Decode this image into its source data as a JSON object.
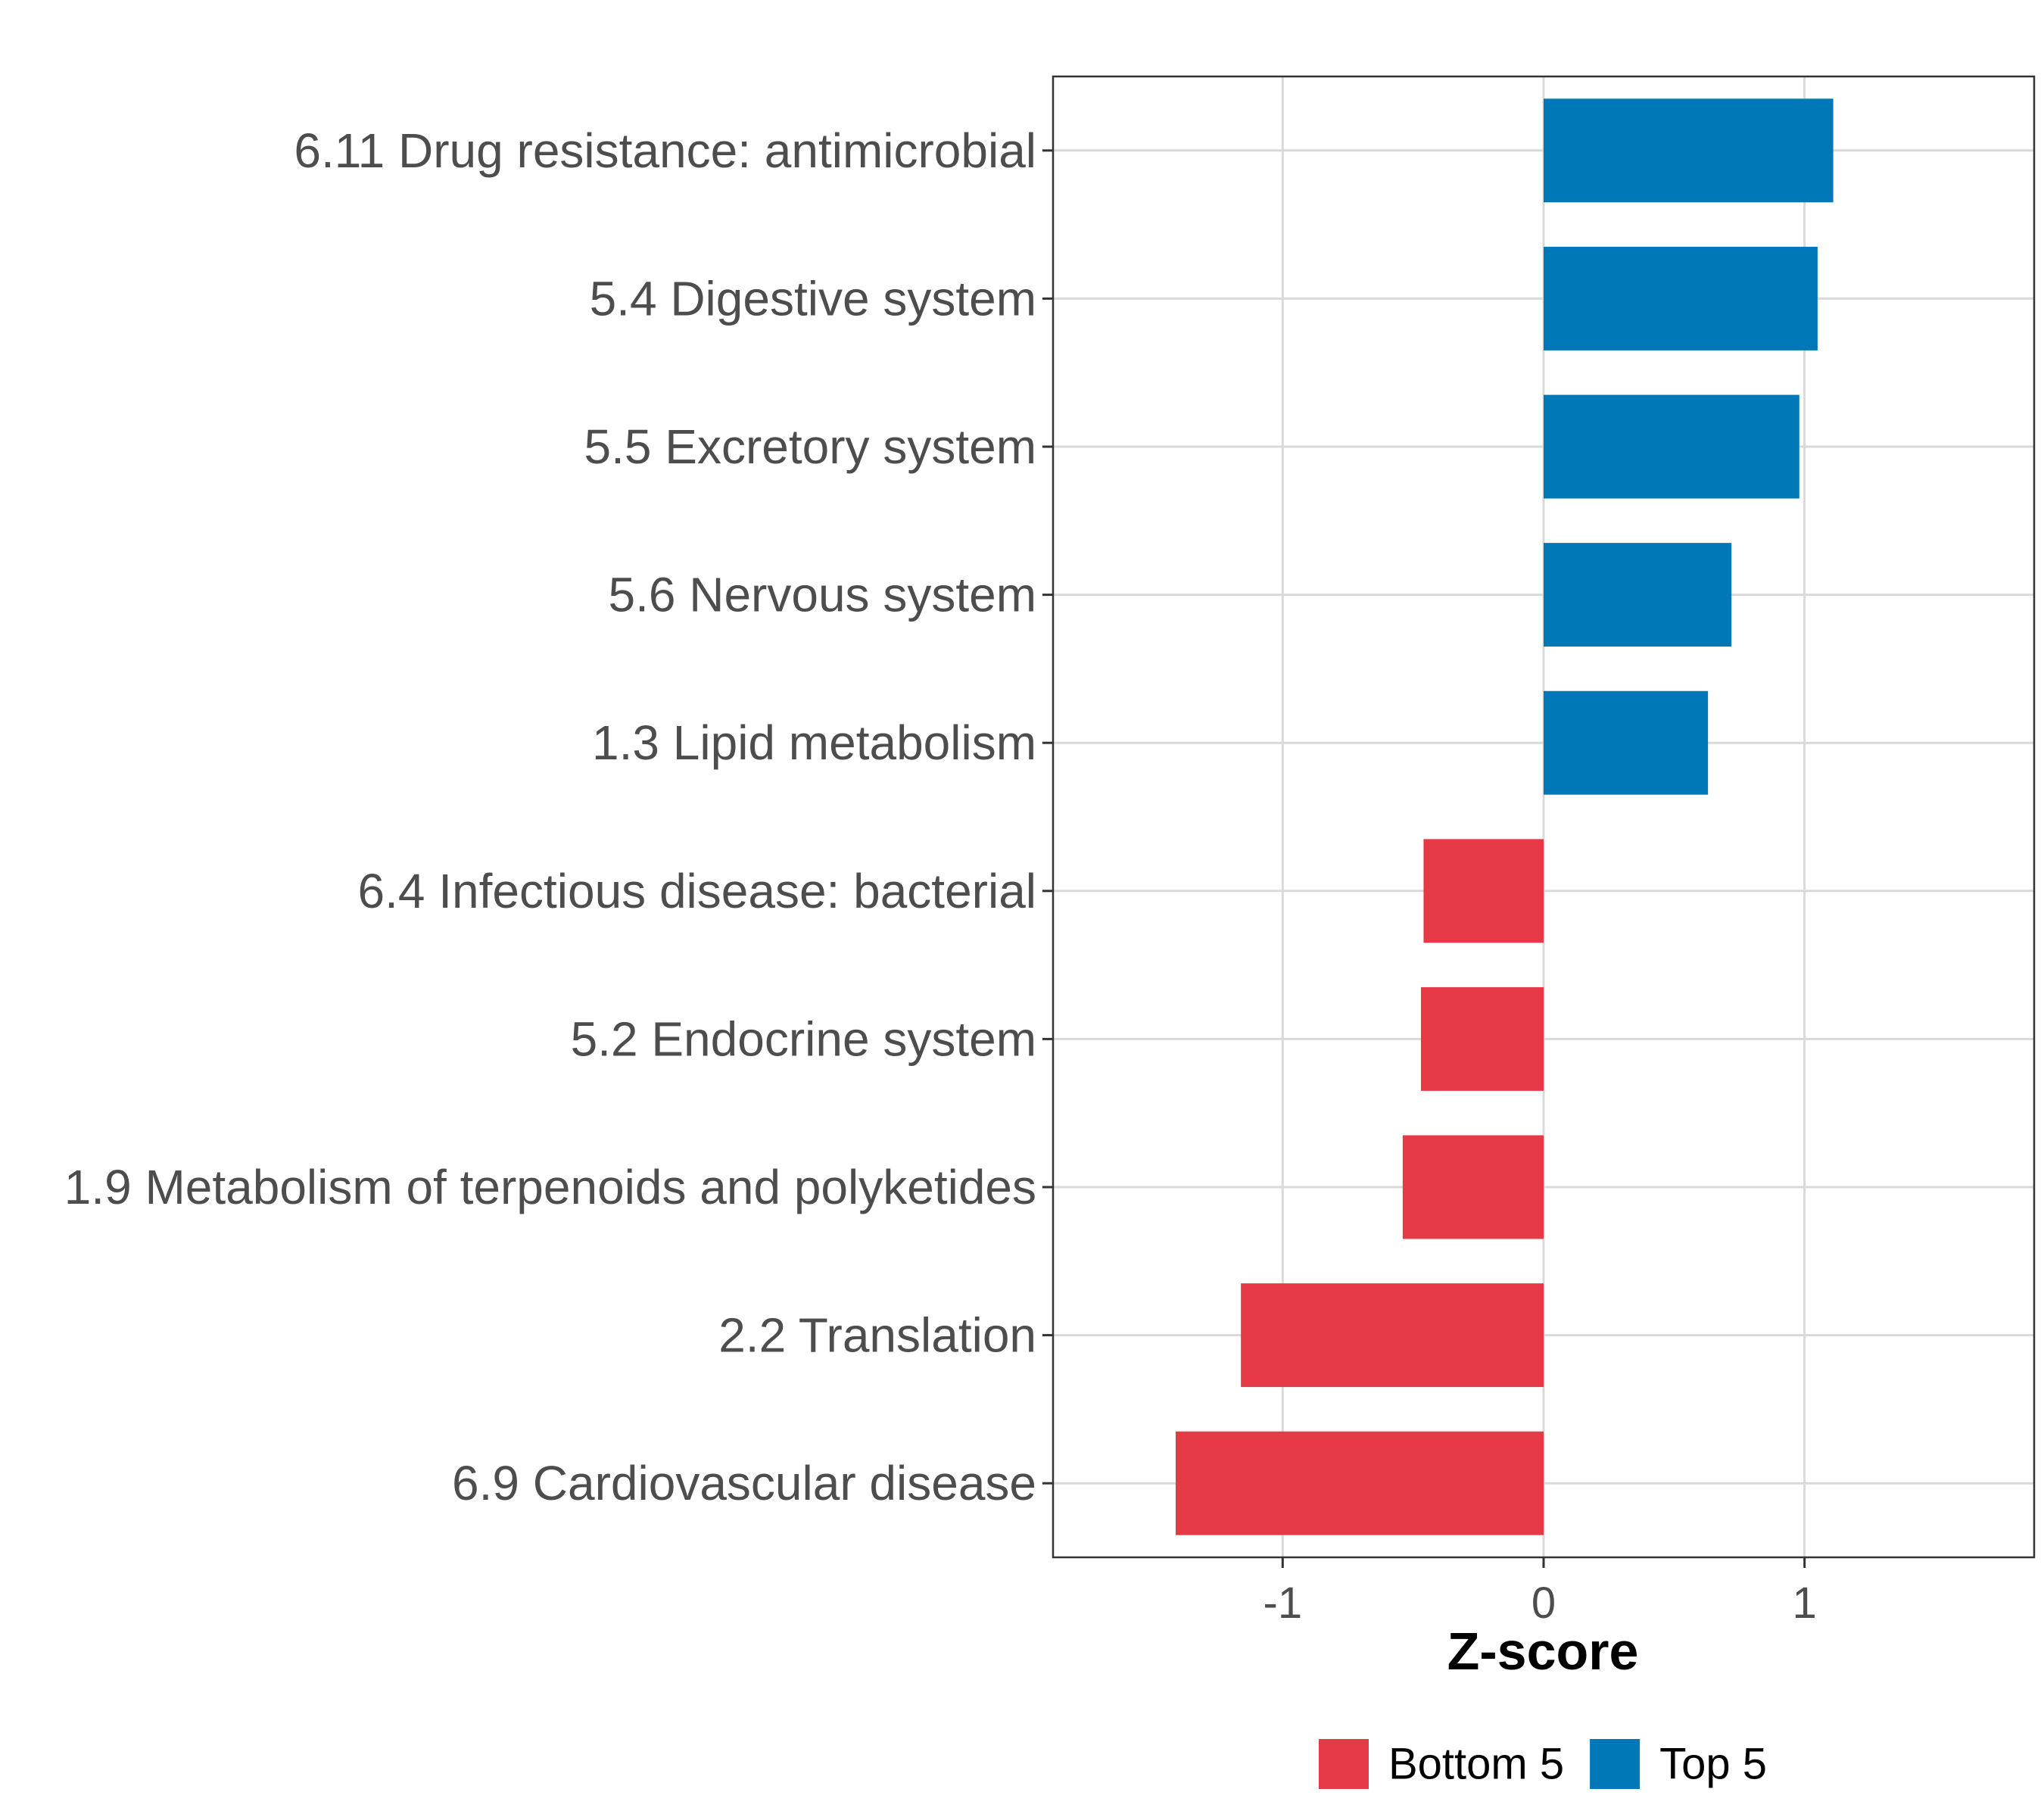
{
  "chart_data": {
    "type": "bar",
    "orientation": "horizontal",
    "categories": [
      "6.11 Drug resistance: antimicrobial",
      "5.4 Digestive system",
      "5.5 Excretory system",
      "5.6 Nervous system",
      "1.3 Lipid metabolism",
      "6.4 Infectious disease: bacterial",
      "5.2 Endocrine system",
      "1.9 Metabolism of terpenoids and polyketides",
      "2.2 Translation",
      "6.9 Cardiovascular disease"
    ],
    "values": [
      1.11,
      1.05,
      0.98,
      0.72,
      0.63,
      -0.46,
      -0.47,
      -0.54,
      -1.16,
      -1.41
    ],
    "groups": [
      "Top 5",
      "Top 5",
      "Top 5",
      "Top 5",
      "Top 5",
      "Bottom 5",
      "Bottom 5",
      "Bottom 5",
      "Bottom 5",
      "Bottom 5"
    ],
    "xlabel": "Z-score",
    "ylabel": "",
    "xlim": [
      -1.88,
      1.88
    ],
    "xticks": [
      "-1",
      "0",
      "1"
    ],
    "grid": true,
    "legend": {
      "position": "bottom",
      "entries": [
        {
          "name": "Bottom 5",
          "color": "#e63946"
        },
        {
          "name": "Top 5",
          "color": "#0077b6"
        }
      ]
    }
  }
}
